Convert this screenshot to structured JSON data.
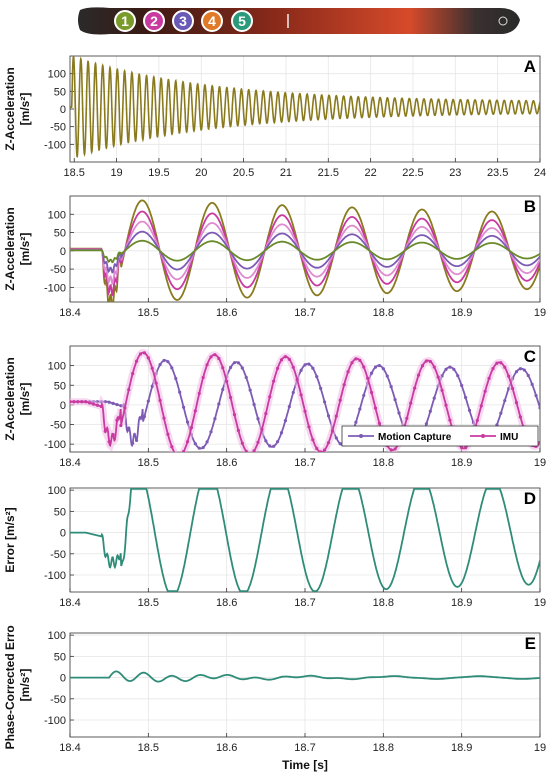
{
  "header": {
    "markers": [
      {
        "label": "1",
        "color": "#7a9a2a"
      },
      {
        "label": "2",
        "color": "#c83aa0"
      },
      {
        "label": "3",
        "color": "#6a5ab8"
      },
      {
        "label": "4",
        "color": "#e07a28"
      },
      {
        "label": "5",
        "color": "#2a9a7a"
      }
    ]
  },
  "colors": {
    "olive": "#8a7a1e",
    "magenta": "#c83aa0",
    "purple": "#7d5bb5",
    "lightmagenta": "#e08ad0",
    "green": "#6a8a2a",
    "teal": "#2f8c78",
    "pinkband": "#f0b8e4"
  },
  "x_axis_label": "Time [s]",
  "chart_data": [
    {
      "id": "A",
      "type": "line",
      "panel_label": "A",
      "ylabel": [
        "Z-Acceleration",
        "[m/s²]"
      ],
      "xlim": [
        18.45,
        24
      ],
      "ylim": [
        -150,
        150
      ],
      "xticks": [
        18.5,
        19,
        19.5,
        20,
        20.5,
        21,
        21.5,
        22,
        22.5,
        23,
        23.5,
        24
      ],
      "yticks": [
        -100,
        -50,
        0,
        50,
        100
      ],
      "series": [
        {
          "color_key": "olive",
          "model": {
            "kind": "decay",
            "A0": 145,
            "f": 11.6,
            "tau": 1.6,
            "floor": 14,
            "t0": 18.47,
            "offset": 5
          }
        }
      ]
    },
    {
      "id": "B",
      "type": "line",
      "panel_label": "B",
      "ylabel": [
        "Z-Acceleration",
        "[m/s²]"
      ],
      "xlim": [
        18.4,
        19
      ],
      "ylim": [
        -140,
        150
      ],
      "xticks": [
        18.4,
        18.5,
        18.6,
        18.7,
        18.8,
        18.9,
        19
      ],
      "yticks": [
        -100,
        -50,
        0,
        50,
        100
      ],
      "series": [
        {
          "color_key": "olive",
          "model": {
            "kind": "impact",
            "amp": 1.0,
            "peak": 140
          }
        },
        {
          "color_key": "magenta",
          "model": {
            "kind": "impact",
            "amp": 0.78,
            "peak": 140
          }
        },
        {
          "color_key": "lightmagenta",
          "model": {
            "kind": "impact",
            "amp": 0.58,
            "peak": 140
          }
        },
        {
          "color_key": "purple",
          "model": {
            "kind": "impact",
            "amp": 0.38,
            "peak": 140
          }
        },
        {
          "color_key": "green",
          "model": {
            "kind": "impact",
            "amp": 0.2,
            "peak": 140
          }
        }
      ]
    },
    {
      "id": "C",
      "type": "line",
      "panel_label": "C",
      "ylabel": [
        "Z-Acceleration",
        "[m/s²]"
      ],
      "xlim": [
        18.4,
        19
      ],
      "ylim": [
        -120,
        150
      ],
      "xticks": [
        18.4,
        18.5,
        18.6,
        18.7,
        18.8,
        18.9,
        19
      ],
      "yticks": [
        -100,
        -50,
        0,
        50,
        100
      ],
      "legend": {
        "position": "bottom-right",
        "entries": [
          "Motion Capture",
          "IMU"
        ]
      },
      "series": [
        {
          "name": "Motion Capture",
          "color_key": "purple",
          "model": {
            "kind": "compare",
            "shift": 0.028,
            "peak": 115
          }
        },
        {
          "name": "IMU",
          "color_key": "magenta",
          "model": {
            "kind": "compare",
            "shift": 0.0,
            "peak": 135
          }
        }
      ]
    },
    {
      "id": "D",
      "type": "line",
      "panel_label": "D",
      "ylabel": [
        "Error [m/s²]"
      ],
      "xlim": [
        18.4,
        19
      ],
      "ylim": [
        -140,
        105
      ],
      "xticks": [
        18.4,
        18.5,
        18.6,
        18.7,
        18.8,
        18.9,
        19
      ],
      "yticks": [
        -100,
        -50,
        0,
        50,
        100
      ],
      "series": [
        {
          "color_key": "teal",
          "model": {
            "kind": "error"
          }
        }
      ]
    },
    {
      "id": "E",
      "type": "line",
      "panel_label": "E",
      "ylabel": [
        "Phase-Corrected Error",
        "[m/s²]"
      ],
      "xlim": [
        18.4,
        19
      ],
      "ylim": [
        -140,
        105
      ],
      "xticks": [
        18.4,
        18.5,
        18.6,
        18.7,
        18.8,
        18.9,
        19
      ],
      "yticks": [
        -100,
        -50,
        0,
        50,
        100
      ],
      "series": [
        {
          "color_key": "teal",
          "model": {
            "kind": "phasecorr"
          }
        }
      ]
    }
  ]
}
